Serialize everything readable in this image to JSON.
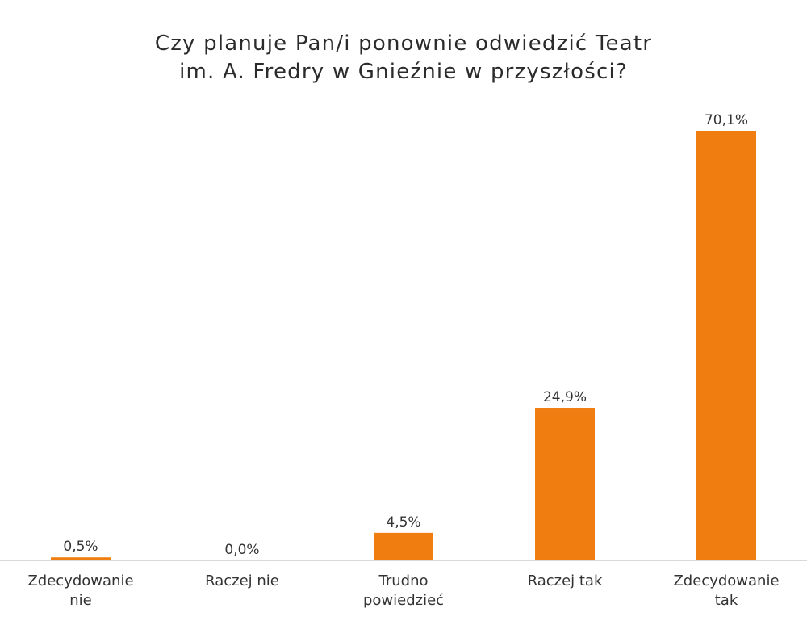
{
  "chart_data": {
    "type": "bar",
    "title": [
      "Czy planuje Pan/i ponownie odwiedzić Teatr",
      "im. A. Fredry w Gnieźnie w przyszłości?"
    ],
    "categories": [
      [
        "Zdecydowanie",
        "nie"
      ],
      [
        "Raczej nie"
      ],
      [
        "Trudno",
        "powiedzieć"
      ],
      [
        "Raczej tak"
      ],
      [
        "Zdecydowanie",
        "tak"
      ]
    ],
    "values": [
      0.5,
      0.0,
      4.5,
      24.9,
      70.1
    ],
    "value_labels": [
      "0,5%",
      "0,0%",
      "4,5%",
      "24,9%",
      "70,1%"
    ],
    "ylim": [
      0,
      70.1
    ],
    "grid": false,
    "legend": "none",
    "bar_color": "#ef7d0f",
    "axis_color": "#d9d9d9"
  }
}
